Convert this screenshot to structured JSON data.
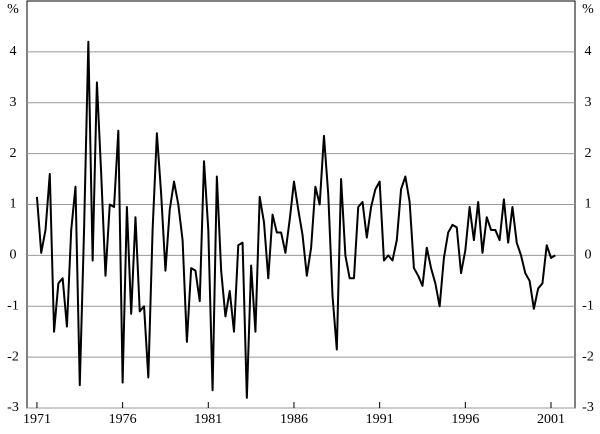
{
  "chart_data": {
    "type": "line",
    "y_unit_left": "%",
    "y_unit_right": "%",
    "x": [
      1971.0,
      1971.25,
      1971.5,
      1971.75,
      1972.0,
      1972.25,
      1972.5,
      1972.75,
      1973.0,
      1973.25,
      1973.5,
      1973.75,
      1974.0,
      1974.25,
      1974.5,
      1974.75,
      1975.0,
      1975.25,
      1975.5,
      1975.75,
      1976.0,
      1976.25,
      1976.5,
      1976.75,
      1977.0,
      1977.25,
      1977.5,
      1977.75,
      1978.0,
      1978.25,
      1978.5,
      1978.75,
      1979.0,
      1979.25,
      1979.5,
      1979.75,
      1980.0,
      1980.25,
      1980.5,
      1980.75,
      1981.0,
      1981.25,
      1981.5,
      1981.75,
      1982.0,
      1982.25,
      1982.5,
      1982.75,
      1983.0,
      1983.25,
      1983.5,
      1983.75,
      1984.0,
      1984.25,
      1984.5,
      1984.75,
      1985.0,
      1985.25,
      1985.5,
      1985.75,
      1986.0,
      1986.25,
      1986.5,
      1986.75,
      1987.0,
      1987.25,
      1987.5,
      1987.75,
      1988.0,
      1988.25,
      1988.5,
      1988.75,
      1989.0,
      1989.25,
      1989.5,
      1989.75,
      1990.0,
      1990.25,
      1990.5,
      1990.75,
      1991.0,
      1991.25,
      1991.5,
      1991.75,
      1992.0,
      1992.25,
      1992.5,
      1992.75,
      1993.0,
      1993.25,
      1993.5,
      1993.75,
      1994.0,
      1994.25,
      1994.5,
      1994.75,
      1995.0,
      1995.25,
      1995.5,
      1995.75,
      1996.0,
      1996.25,
      1996.5,
      1996.75,
      1997.0,
      1997.25,
      1997.5,
      1997.75,
      1998.0,
      1998.25,
      1998.5,
      1998.75,
      1999.0,
      1999.25,
      1999.5,
      1999.75,
      2000.0,
      2000.25,
      2000.5,
      2000.75,
      2001.0,
      2001.25
    ],
    "series": [
      {
        "color": "#000000",
        "values": [
          1.15,
          0.05,
          0.5,
          1.6,
          -1.5,
          -0.55,
          -0.45,
          -1.4,
          0.5,
          1.35,
          -2.55,
          0.5,
          4.2,
          -0.1,
          3.4,
          1.6,
          -0.4,
          1.0,
          0.95,
          2.45,
          -2.5,
          0.95,
          -1.15,
          0.75,
          -1.1,
          -1.0,
          -2.4,
          0.5,
          2.4,
          1.2,
          -0.3,
          0.9,
          1.45,
          1.0,
          0.3,
          -1.7,
          -0.25,
          -0.3,
          -0.9,
          1.85,
          0.5,
          -2.65,
          1.55,
          -0.3,
          -1.2,
          -0.7,
          -1.5,
          0.2,
          0.25,
          -2.8,
          -0.2,
          -1.5,
          1.15,
          0.65,
          -0.45,
          0.8,
          0.45,
          0.45,
          0.05,
          0.7,
          1.45,
          0.9,
          0.4,
          -0.4,
          0.15,
          1.35,
          1.0,
          2.35,
          1.2,
          -0.8,
          -1.85,
          1.5,
          0.0,
          -0.45,
          -0.45,
          0.95,
          1.05,
          0.35,
          0.95,
          1.3,
          1.45,
          -0.1,
          0.0,
          -0.1,
          0.3,
          1.3,
          1.55,
          1.05,
          -0.25,
          -0.4,
          -0.6,
          0.15,
          -0.25,
          -0.55,
          -1.0,
          -0.05,
          0.45,
          0.6,
          0.55,
          -0.35,
          0.1,
          0.95,
          0.3,
          1.05,
          0.05,
          0.75,
          0.5,
          0.5,
          0.3,
          1.1,
          0.25,
          0.95,
          0.25,
          0.0,
          -0.35,
          -0.5,
          -1.05,
          -0.65,
          -0.55,
          0.2,
          -0.05,
          0.0
        ]
      }
    ],
    "xlim": [
      1970.42,
      2002.4
    ],
    "xticks": [
      1971,
      1976,
      1981,
      1986,
      1991,
      1996,
      2001
    ],
    "ylim": [
      -3,
      5
    ],
    "yticks": [
      -3,
      -2,
      -1,
      0,
      1,
      2,
      3,
      4
    ],
    "grid": true
  }
}
